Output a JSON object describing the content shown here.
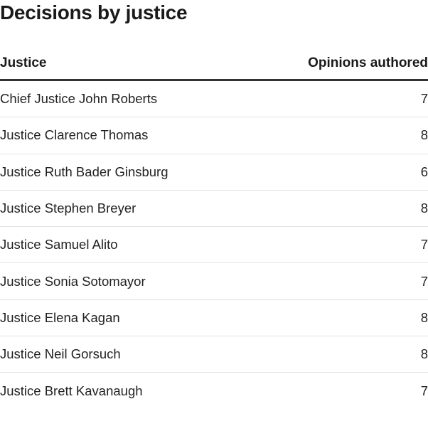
{
  "title": "Decisions by justice",
  "table": {
    "columns": [
      "Justice",
      "Opinions authored"
    ],
    "rows": [
      {
        "justice": "Chief Justice John Roberts",
        "opinions": "7"
      },
      {
        "justice": "Justice Clarence Thomas",
        "opinions": "8"
      },
      {
        "justice": "Justice Ruth Bader Ginsburg",
        "opinions": "6"
      },
      {
        "justice": "Justice Stephen Breyer",
        "opinions": "8"
      },
      {
        "justice": "Justice Samuel Alito",
        "opinions": "7"
      },
      {
        "justice": "Justice Sonia Sotomayor",
        "opinions": "7"
      },
      {
        "justice": "Justice Elena Kagan",
        "opinions": "8"
      },
      {
        "justice": "Justice Neil Gorsuch",
        "opinions": "8"
      },
      {
        "justice": "Justice Brett Kavanaugh",
        "opinions": "7"
      }
    ]
  }
}
